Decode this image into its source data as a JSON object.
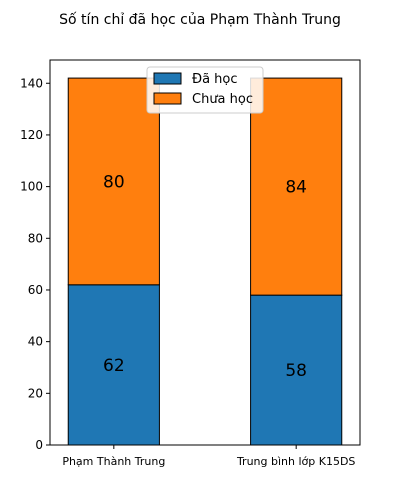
{
  "chart_data": {
    "type": "bar",
    "stacked": true,
    "title": "Số tín chỉ đã học của Phạm Thành Trung",
    "xlabel": "",
    "ylabel": "",
    "categories": [
      "Phạm Thành Trung",
      "Trung bình lớp K15DS"
    ],
    "series": [
      {
        "name": "Đã học",
        "values": [
          62,
          58
        ],
        "color": "#1f77b4"
      },
      {
        "name": "Chưa học",
        "values": [
          80,
          84
        ],
        "color": "#ff7f0e"
      }
    ],
    "ylim": [
      0,
      149
    ],
    "yticks": [
      0,
      20,
      40,
      60,
      80,
      100,
      120,
      140
    ],
    "grid": false,
    "legend_position": "top-center"
  }
}
